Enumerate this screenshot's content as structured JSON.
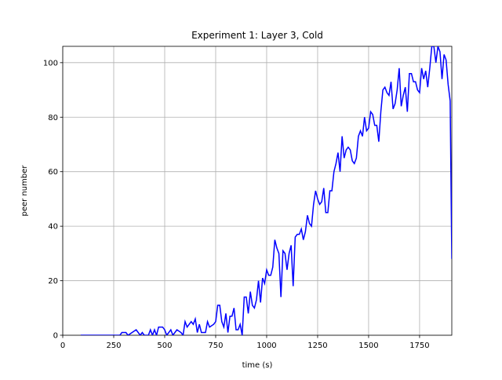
{
  "chart_data": {
    "type": "line",
    "title": "Experiment 1: Layer 3, Cold",
    "x_label": "time (s)",
    "y_label": "peer number",
    "color": "#0000ff",
    "grid": true,
    "xlim": [
      0,
      1908
    ],
    "ylim": [
      0,
      106
    ],
    "xticks": [
      0,
      250,
      500,
      750,
      1000,
      1250,
      1500,
      1750
    ],
    "yticks": [
      0,
      20,
      40,
      60,
      80,
      100
    ],
    "x": [
      88,
      150,
      250,
      280,
      290,
      310,
      320,
      340,
      360,
      380,
      390,
      400,
      420,
      430,
      440,
      450,
      460,
      470,
      490,
      500,
      510,
      530,
      540,
      560,
      580,
      590,
      600,
      610,
      620,
      630,
      640,
      650,
      660,
      670,
      680,
      700,
      710,
      720,
      740,
      750,
      760,
      770,
      780,
      790,
      800,
      810,
      820,
      830,
      840,
      850,
      860,
      870,
      880,
      890,
      900,
      910,
      920,
      930,
      940,
      950,
      960,
      970,
      980,
      990,
      1000,
      1010,
      1020,
      1030,
      1040,
      1050,
      1060,
      1070,
      1080,
      1090,
      1100,
      1110,
      1120,
      1130,
      1140,
      1150,
      1160,
      1170,
      1180,
      1190,
      1200,
      1210,
      1220,
      1230,
      1240,
      1250,
      1260,
      1270,
      1280,
      1290,
      1300,
      1310,
      1320,
      1330,
      1340,
      1350,
      1360,
      1370,
      1380,
      1390,
      1400,
      1410,
      1420,
      1430,
      1440,
      1450,
      1460,
      1470,
      1480,
      1490,
      1500,
      1510,
      1520,
      1530,
      1540,
      1550,
      1560,
      1570,
      1580,
      1590,
      1600,
      1610,
      1620,
      1630,
      1640,
      1650,
      1660,
      1670,
      1680,
      1690,
      1700,
      1710,
      1720,
      1730,
      1740,
      1750,
      1760,
      1770,
      1780,
      1790,
      1800,
      1810,
      1820,
      1830,
      1840,
      1850,
      1860,
      1870,
      1880,
      1890,
      1900,
      1908
    ],
    "values": [
      0,
      0,
      0,
      0,
      1,
      1,
      0,
      1,
      2,
      0,
      1,
      0,
      0,
      2,
      0,
      2,
      0,
      3,
      3,
      2,
      0,
      2,
      0,
      2,
      1,
      0,
      5,
      3,
      4,
      5,
      4,
      6,
      1,
      4,
      1,
      1,
      5,
      3,
      4,
      5,
      11,
      11,
      5,
      3,
      8,
      1,
      7,
      7,
      10,
      2,
      2,
      4,
      0,
      14,
      14,
      8,
      16,
      11,
      10,
      13,
      20,
      12,
      21,
      19,
      24,
      22,
      22,
      25,
      35,
      32,
      30,
      14,
      31,
      30,
      24,
      30,
      33,
      18,
      36,
      37,
      37,
      39,
      35,
      38,
      44,
      41,
      40,
      48,
      53,
      50,
      48,
      49,
      54,
      45,
      45,
      53,
      53,
      60,
      63,
      67,
      60,
      73,
      65,
      68,
      69,
      68,
      64,
      63,
      65,
      73,
      75,
      73,
      80,
      75,
      76,
      82,
      81,
      77,
      77,
      71,
      82,
      90,
      91,
      89,
      88,
      93,
      83,
      85,
      90,
      98,
      84,
      88,
      91,
      82,
      96,
      96,
      93,
      93,
      90,
      89,
      98,
      94,
      97,
      91,
      98,
      106,
      106,
      100,
      106,
      104,
      94,
      103,
      101,
      92,
      86,
      28
    ]
  }
}
